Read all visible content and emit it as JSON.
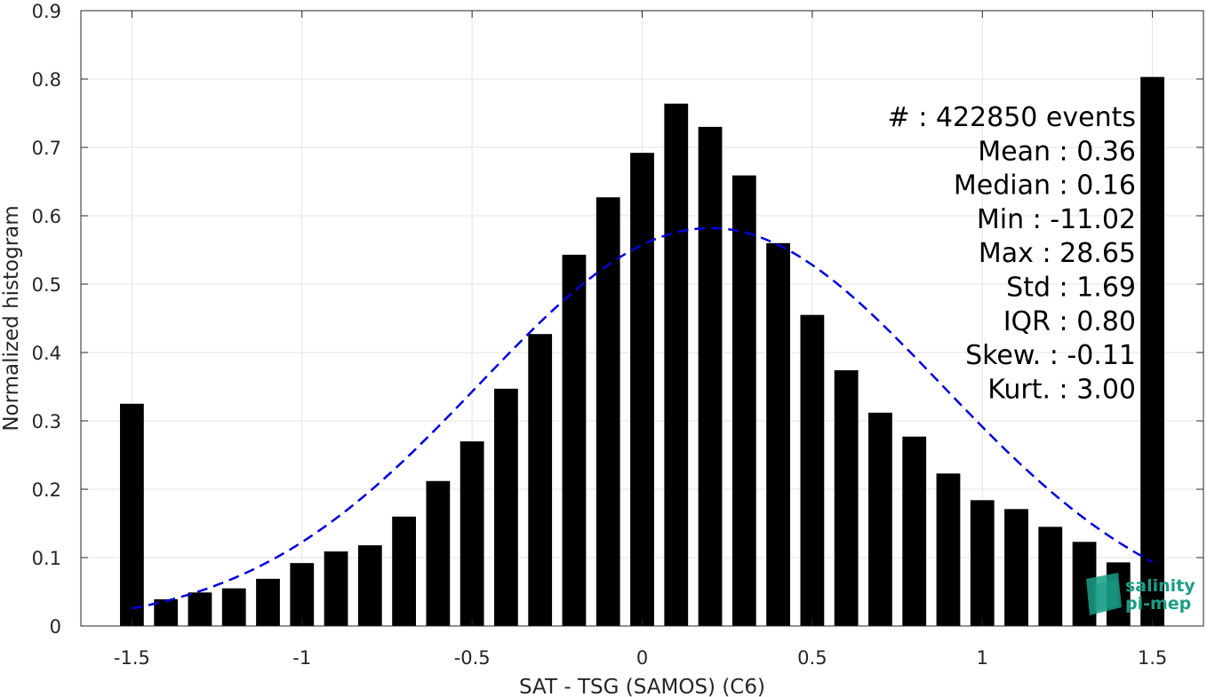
{
  "chart_data": {
    "type": "bar",
    "xlabel": "SAT - TSG (SAMOS) (C6)",
    "ylabel": "Normalized histogram",
    "xlim": [
      -1.65,
      1.65
    ],
    "ylim": [
      0,
      0.9
    ],
    "xticks": [
      -1.5,
      -1,
      -0.5,
      0,
      0.5,
      1,
      1.5
    ],
    "xtick_labels": [
      "-1.5",
      "-1",
      "-0.5",
      "0",
      "0.5",
      "1",
      "1.5"
    ],
    "yticks": [
      0,
      0.1,
      0.2,
      0.3,
      0.4,
      0.5,
      0.6,
      0.7,
      0.8,
      0.9
    ],
    "ytick_labels": [
      "0",
      "0.1",
      "0.2",
      "0.3",
      "0.4",
      "0.5",
      "0.6",
      "0.7",
      "0.8",
      "0.9"
    ],
    "grid": true,
    "bar_color": "#000000",
    "x": [
      -1.5,
      -1.4,
      -1.3,
      -1.2,
      -1.1,
      -1.0,
      -0.9,
      -0.8,
      -0.7,
      -0.6,
      -0.5,
      -0.4,
      -0.3,
      -0.2,
      -0.1,
      0.0,
      0.1,
      0.2,
      0.3,
      0.4,
      0.5,
      0.6,
      0.7,
      0.8,
      0.9,
      1.0,
      1.1,
      1.2,
      1.3,
      1.4,
      1.5
    ],
    "values": [
      0.325,
      0.039,
      0.049,
      0.055,
      0.069,
      0.092,
      0.109,
      0.118,
      0.16,
      0.212,
      0.27,
      0.347,
      0.427,
      0.543,
      0.627,
      0.692,
      0.764,
      0.73,
      0.659,
      0.56,
      0.455,
      0.374,
      0.312,
      0.277,
      0.223,
      0.184,
      0.171,
      0.145,
      0.123,
      0.093,
      0.803
    ],
    "fit_curve": {
      "style": "dashed",
      "color": "#0000dd",
      "mean": 0.2,
      "std": 0.68,
      "peak": 0.582,
      "x_range": [
        -1.5,
        1.5
      ]
    },
    "stats": [
      "#  : 422850 events",
      "Mean : 0.36",
      "Median : 0.16",
      "Min : -11.02",
      "Max : 28.65",
      "Std : 1.69",
      "IQR : 0.80",
      "Skew. : -0.11",
      "Kurt. : 3.00"
    ]
  },
  "logo": {
    "line1": "salinity",
    "line2": "pi-mep",
    "color": "#1a9e86"
  }
}
